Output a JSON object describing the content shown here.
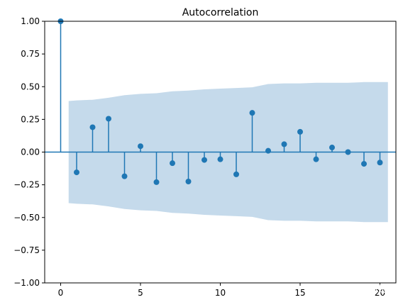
{
  "chart_data": {
    "type": "stem",
    "title": "Autocorrelation",
    "xlabel": "",
    "ylabel": "",
    "xlim": [
      -1,
      21
    ],
    "ylim": [
      -1.0,
      1.0
    ],
    "xticks": [
      0,
      5,
      10,
      15,
      20
    ],
    "xtick_labels": [
      "0",
      "5",
      "10",
      "15",
      "20"
    ],
    "yticks": [
      -1.0,
      -0.75,
      -0.5,
      -0.25,
      0.0,
      0.25,
      0.5,
      0.75,
      1.0
    ],
    "ytick_labels": [
      "−1.00",
      "−0.75",
      "−0.50",
      "−0.25",
      "0.00",
      "0.25",
      "0.50",
      "0.75",
      "1.00"
    ],
    "grid": false,
    "series": [
      {
        "lags": [
          0,
          1,
          2,
          3,
          4,
          5,
          6,
          7,
          8,
          9,
          10,
          11,
          12,
          13,
          14,
          15,
          16,
          17,
          18,
          19,
          20
        ],
        "values": [
          1.0,
          -0.155,
          0.19,
          0.255,
          -0.185,
          0.045,
          -0.23,
          -0.085,
          -0.225,
          -0.06,
          -0.055,
          -0.17,
          0.3,
          0.01,
          0.06,
          0.155,
          -0.055,
          0.035,
          0.0,
          -0.09,
          -0.08
        ]
      }
    ],
    "confidence_band": {
      "x": [
        0.5,
        1,
        2,
        3,
        4,
        5,
        6,
        7,
        8,
        9,
        10,
        11,
        12,
        13,
        14,
        15,
        16,
        17,
        18,
        19,
        20,
        20.5
      ],
      "upper": [
        0.39,
        0.395,
        0.4,
        0.415,
        0.435,
        0.445,
        0.45,
        0.465,
        0.47,
        0.48,
        0.485,
        0.49,
        0.495,
        0.52,
        0.525,
        0.525,
        0.53,
        0.53,
        0.53,
        0.535,
        0.535,
        0.535
      ]
    },
    "colors": {
      "stem": "#1f77b4",
      "band": "#c5daeb",
      "axis": "#000000"
    }
  },
  "watermark": {
    "text": "知乎 @雨迹"
  }
}
